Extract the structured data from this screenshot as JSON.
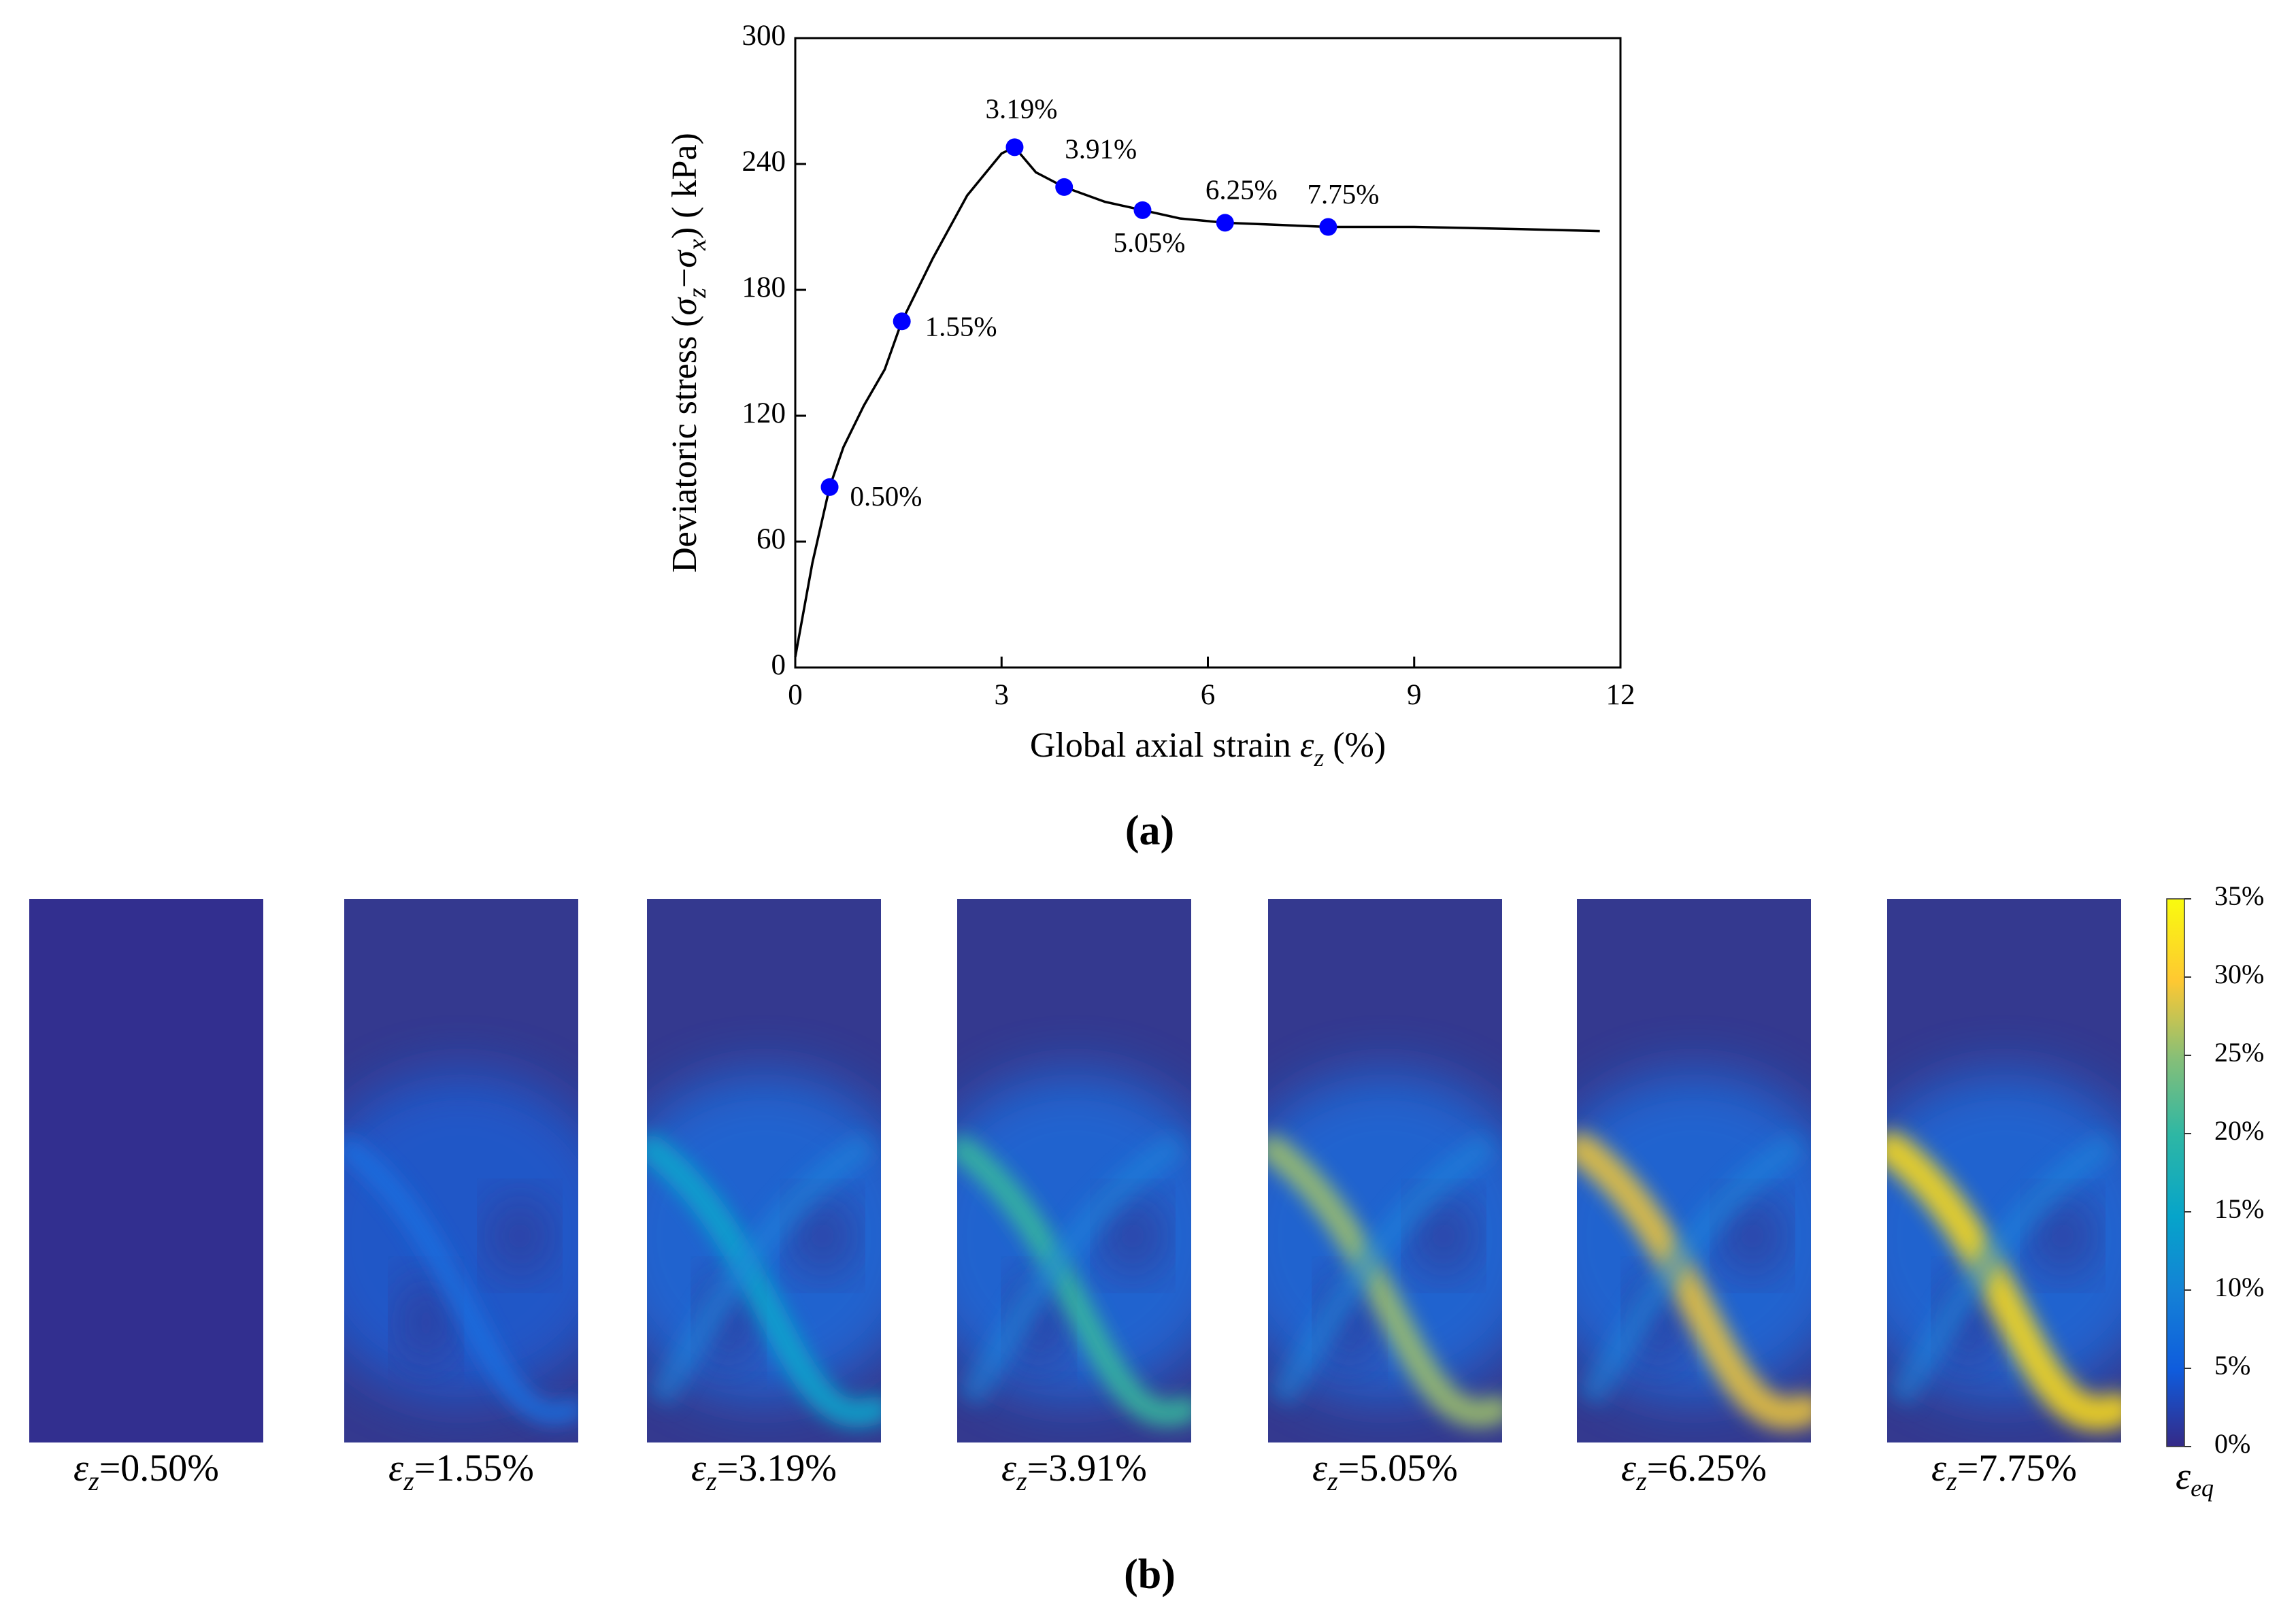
{
  "chart_data": {
    "type": "line",
    "x": [
      0,
      0.25,
      0.5,
      0.7,
      1.0,
      1.3,
      1.55,
      2.0,
      2.5,
      3.0,
      3.19,
      3.5,
      3.91,
      4.5,
      5.05,
      5.6,
      6.25,
      7.0,
      7.75,
      9.0,
      10.5,
      11.7
    ],
    "series": [
      {
        "color": "#000000",
        "values": [
          5,
          50,
          86,
          105,
          125,
          142,
          165,
          195,
          225,
          245,
          248,
          236,
          229,
          222,
          218,
          214,
          212,
          211,
          210,
          210,
          209,
          208
        ]
      }
    ],
    "points": {
      "color": "#0000ff",
      "x": [
        0.5,
        1.55,
        3.19,
        3.91,
        5.05,
        6.25,
        7.75
      ],
      "values": [
        86,
        165,
        248,
        229,
        218,
        212,
        210
      ],
      "labels": [
        "0.50%",
        "1.55%",
        "3.19%",
        "3.91%",
        "5.05%",
        "6.25%",
        "7.75%"
      ]
    },
    "xlim": [
      0,
      12
    ],
    "xticks": [
      0,
      3,
      6,
      9,
      12
    ],
    "ylim": [
      0,
      300
    ],
    "yticks": [
      0,
      60,
      120,
      180,
      240,
      300
    ],
    "x_label": [
      {
        "t": "Global axial strain "
      },
      {
        "t": "ε",
        "italic": true
      },
      {
        "t": "z",
        "sub": true,
        "italic": true
      },
      {
        "t": " (%)"
      }
    ],
    "y_label": [
      {
        "t": "Deviatoric stress ("
      },
      {
        "t": "σ",
        "italic": true
      },
      {
        "t": "z",
        "sub": true,
        "italic": true
      },
      {
        "t": "−"
      },
      {
        "t": "σ",
        "italic": true
      },
      {
        "t": "x",
        "sub": true,
        "italic": true
      },
      {
        "t": ") ( kPa)"
      }
    ]
  },
  "panel_labels": [
    "(a)",
    "(b)"
  ],
  "contours": {
    "captions": [
      [
        {
          "t": "ε",
          "italic": true
        },
        {
          "t": "z",
          "sub": true,
          "italic": true
        },
        {
          "t": "=0.50%"
        }
      ],
      [
        {
          "t": "ε",
          "italic": true
        },
        {
          "t": "z",
          "sub": true,
          "italic": true
        },
        {
          "t": "=1.55%"
        }
      ],
      [
        {
          "t": "ε",
          "italic": true
        },
        {
          "t": "z",
          "sub": true,
          "italic": true
        },
        {
          "t": "=3.19%"
        }
      ],
      [
        {
          "t": "ε",
          "italic": true
        },
        {
          "t": "z",
          "sub": true,
          "italic": true
        },
        {
          "t": "=3.91%"
        }
      ],
      [
        {
          "t": "ε",
          "italic": true
        },
        {
          "t": "z",
          "sub": true,
          "italic": true
        },
        {
          "t": "=5.05%"
        }
      ],
      [
        {
          "t": "ε",
          "italic": true
        },
        {
          "t": "z",
          "sub": true,
          "italic": true
        },
        {
          "t": "=6.25%"
        }
      ],
      [
        {
          "t": "ε",
          "italic": true
        },
        {
          "t": "z",
          "sub": true,
          "italic": true
        },
        {
          "t": "=7.75%"
        }
      ]
    ],
    "colorbar": {
      "ticks": [
        {
          "value": 0,
          "label": "0%"
        },
        {
          "value": 5,
          "label": "5%"
        },
        {
          "value": 10,
          "label": "10%"
        },
        {
          "value": 15,
          "label": "15%"
        },
        {
          "value": 20,
          "label": "20%"
        },
        {
          "value": 25,
          "label": "25%"
        },
        {
          "value": 30,
          "label": "30%"
        },
        {
          "value": 35,
          "label": "35%"
        }
      ],
      "lim": [
        0,
        35
      ],
      "label": [
        {
          "t": "ε",
          "italic": true
        },
        {
          "t": "eq",
          "sub": true,
          "italic": true
        }
      ]
    }
  }
}
